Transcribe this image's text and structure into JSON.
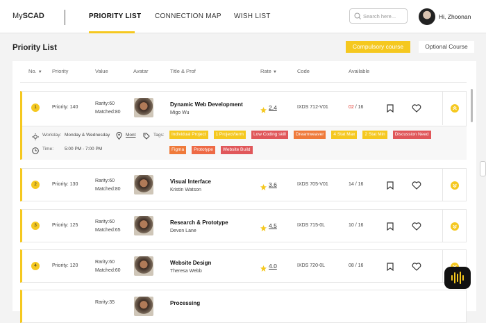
{
  "header": {
    "logo": {
      "light": "My",
      "bold": "SCAD"
    },
    "nav": [
      "PRIORITY LIST",
      "CONNECTION MAP",
      "WISH LIST"
    ],
    "search_placeholder": "Search here...",
    "greeting": "Hi, Zhoonan"
  },
  "page": {
    "title": "Priority List",
    "filters": [
      "Compulsory course",
      "Optional Course"
    ]
  },
  "table": {
    "columns": [
      "No.",
      "Priority",
      "Value",
      "Avatar",
      "Title & Prof",
      "Rate",
      "Code",
      "Available"
    ],
    "rows": [
      {
        "no": "1",
        "priority": "Priority: 140",
        "rarity": "Rarity:60",
        "matched": "Matched:80",
        "title": "Dynamic Web Development",
        "prof": "Migo Wu",
        "rate": "2.4",
        "code": "IXDS 712-V01",
        "available": "02",
        "available_color": "#e0352b",
        "total": "/ 16",
        "details": {
          "workday_label": "Workday:",
          "workday": "Monday & Wednesday",
          "location": "Mont",
          "tags_label": "Tags:",
          "time_label": "Time:",
          "time": "5:00 PM - 7:00 PM",
          "tags": [
            {
              "text": "Individual Project",
              "color": "#f5c81f"
            },
            {
              "text": "1 Project/term",
              "color": "#f5c81f"
            },
            {
              "text": "Low Coding skill",
              "color": "#e0575a"
            },
            {
              "text": "Dreamweaver",
              "color": "#ef7a3a"
            },
            {
              "text": "4 Stat Max",
              "color": "#f5c81f"
            },
            {
              "text": "2 Stat Min",
              "color": "#f5c81f"
            },
            {
              "text": "Discussion Need",
              "color": "#e0575a"
            },
            {
              "text": "Figma",
              "color": "#ef7a3a"
            },
            {
              "text": "Prototype",
              "color": "#ee6a45"
            },
            {
              "text": "Website Build",
              "color": "#e0575a"
            }
          ]
        }
      },
      {
        "no": "2",
        "priority": "Priority: 130",
        "rarity": "Rarity:60",
        "matched": "Matched:80",
        "title": "Visual Interface",
        "prof": "Kristin Watson",
        "rate": "3.6",
        "code": "IXDS 705-V01",
        "available": "14",
        "total": "/ 16"
      },
      {
        "no": "3",
        "priority": "Priority: 125",
        "rarity": "Rarity:60",
        "matched": "Matched:65",
        "title": "Research & Prototype",
        "prof": "Devon Lane",
        "rate": "4.5",
        "code": "IXDS 715-0L",
        "available": "10",
        "total": "/ 16"
      },
      {
        "no": "4",
        "priority": "Priority: 120",
        "rarity": "Rarity:60",
        "matched": "Matched:60",
        "title": "Website Design",
        "prof": "Theresa Webb",
        "rate": "4.0",
        "code": "IXDS 720-0L",
        "available": "08",
        "total": "/ 16"
      },
      {
        "rarity": "Rarity:35",
        "title": "Processing"
      }
    ]
  }
}
